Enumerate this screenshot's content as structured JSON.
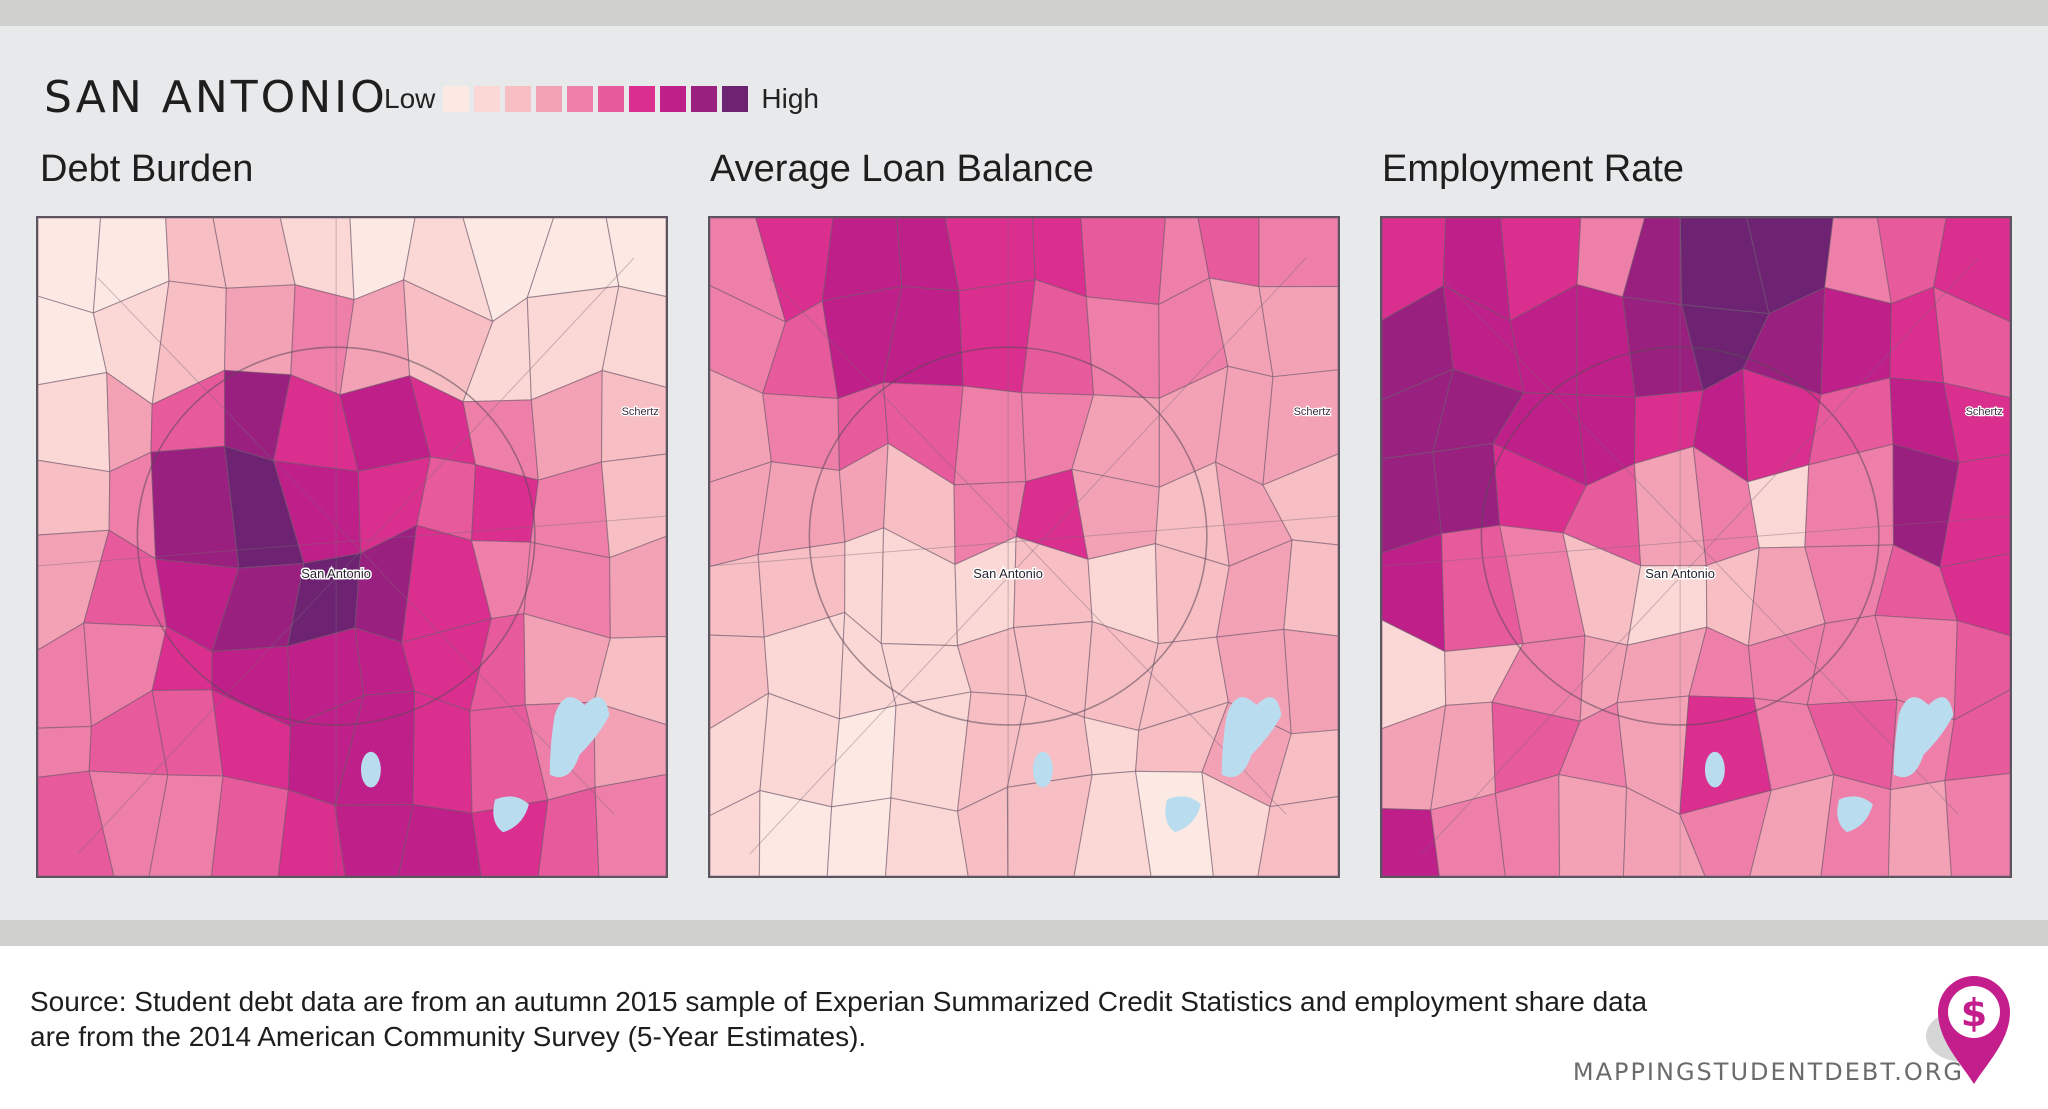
{
  "header": {
    "city": "SAN ANTONIO",
    "legend_low": "Low",
    "legend_high": "High",
    "legend_colors": [
      "#fde9e3",
      "#fbd8d5",
      "#f7bec4",
      "#f3a2b6",
      "#ee7fa8",
      "#e75a9b",
      "#da2f8f",
      "#bf1f88",
      "#9a2080",
      "#6d2372"
    ]
  },
  "maps": [
    {
      "title": "Debt Burden",
      "city_label": "San Antonio",
      "suburb_label": "Schertz",
      "base_color": "#f3a0b6",
      "blocks": [
        [
          0,
          0,
          2,
          2,
          1,
          0,
          1,
          0,
          0,
          0
        ],
        [
          0,
          1,
          2,
          3,
          4,
          3,
          2,
          1,
          1,
          1
        ],
        [
          1,
          3,
          5,
          8,
          6,
          7,
          6,
          4,
          3,
          2
        ],
        [
          2,
          4,
          8,
          9,
          7,
          6,
          5,
          6,
          4,
          2
        ],
        [
          3,
          5,
          7,
          8,
          9,
          8,
          6,
          4,
          4,
          3
        ],
        [
          4,
          4,
          6,
          7,
          7,
          7,
          6,
          5,
          3,
          2
        ],
        [
          4,
          5,
          5,
          6,
          7,
          7,
          6,
          5,
          4,
          3
        ],
        [
          5,
          4,
          4,
          5,
          6,
          7,
          7,
          6,
          5,
          4
        ]
      ]
    },
    {
      "title": "Average Loan Balance",
      "city_label": "San Antonio",
      "suburb_label": "Schertz",
      "base_color": "#f7bec4",
      "blocks": [
        [
          4,
          6,
          7,
          7,
          6,
          6,
          5,
          4,
          5,
          4
        ],
        [
          4,
          5,
          7,
          7,
          6,
          5,
          4,
          4,
          3,
          3
        ],
        [
          3,
          4,
          5,
          5,
          4,
          4,
          3,
          3,
          3,
          3
        ],
        [
          3,
          3,
          3,
          2,
          4,
          6,
          3,
          2,
          3,
          2
        ],
        [
          2,
          2,
          1,
          1,
          1,
          2,
          1,
          2,
          3,
          2
        ],
        [
          2,
          1,
          1,
          1,
          2,
          2,
          2,
          2,
          3,
          3
        ],
        [
          1,
          1,
          0,
          1,
          2,
          2,
          1,
          2,
          3,
          2
        ],
        [
          1,
          0,
          0,
          1,
          2,
          2,
          1,
          0,
          1,
          2
        ]
      ]
    },
    {
      "title": "Employment Rate",
      "city_label": "San Antonio",
      "suburb_label": "Schertz",
      "base_color": "#ee7fa8",
      "blocks": [
        [
          6,
          7,
          6,
          4,
          8,
          9,
          9,
          4,
          5,
          6
        ],
        [
          8,
          7,
          7,
          7,
          8,
          9,
          8,
          7,
          6,
          5
        ],
        [
          8,
          8,
          7,
          7,
          6,
          7,
          6,
          5,
          7,
          6
        ],
        [
          8,
          8,
          6,
          5,
          3,
          4,
          1,
          4,
          8,
          6
        ],
        [
          7,
          5,
          4,
          2,
          1,
          2,
          3,
          4,
          5,
          6
        ],
        [
          1,
          2,
          4,
          3,
          3,
          4,
          4,
          4,
          4,
          5
        ],
        [
          3,
          3,
          5,
          4,
          3,
          6,
          4,
          5,
          4,
          5
        ],
        [
          7,
          4,
          4,
          3,
          3,
          4,
          3,
          4,
          3,
          4
        ]
      ]
    }
  ],
  "footer": {
    "source": "Source: Student debt data are from an autumn 2015 sample of Experian Summarized Credit Statistics and employment share data are from the 2014 American Community Survey (5-Year Estimates).",
    "site": "MAPPINGSTUDENTDEBT.ORG",
    "logo_icon": "dollar-map-pin-icon"
  }
}
